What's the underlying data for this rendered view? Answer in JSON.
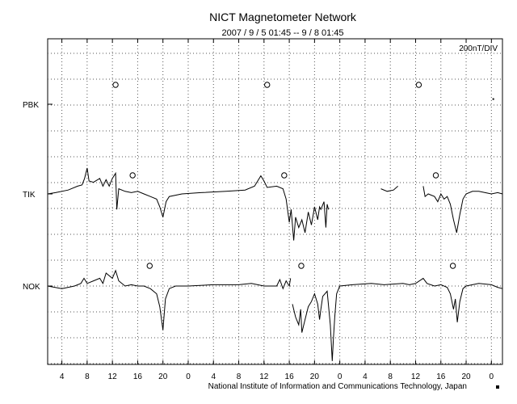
{
  "title": "NICT Magnetometer Network",
  "subtitle": "2007 / 9 / 5  01:45 -- 9 / 8  01:45",
  "scale_label": "200nT/DIV",
  "footer": "National Institute of Information and Communications Technology, Japan",
  "chart_data": {
    "type": "line",
    "title": "NICT Magnetometer Network",
    "time_range": [
      "2007/9/5 01:45",
      "2007/9/8 01:45"
    ],
    "x_unit": "hour (time of day)",
    "xlim": [
      1.75,
      73.75
    ],
    "x_tick_hours": [
      4,
      8,
      12,
      16,
      20,
      24,
      28,
      32,
      36,
      40,
      44,
      48,
      52,
      56,
      60,
      64,
      68,
      72
    ],
    "x_tick_labels": [
      "4",
      "8",
      "12",
      "16",
      "20",
      "0",
      "4",
      "8",
      "12",
      "16",
      "20",
      "0",
      "4",
      "8",
      "12",
      "16",
      "20",
      "0"
    ],
    "y_scale": "200nT/DIV",
    "grid": true,
    "series": [
      {
        "name": "PBK",
        "local_noon_markers_hour": [
          12.5,
          36.5,
          60.5
        ],
        "points": [
          [
            72.3,
            0.2
          ]
        ]
      },
      {
        "name": "TIK",
        "local_noon_markers_hour": [
          15.2,
          39.2,
          63.2
        ],
        "points": [
          [
            1.75,
            0
          ],
          [
            3,
            0.05
          ],
          [
            5,
            0.15
          ],
          [
            6.5,
            0.3
          ],
          [
            7.2,
            0.35
          ],
          [
            7.6,
            0.6
          ],
          [
            8,
            1.0
          ],
          [
            8.3,
            0.5
          ],
          [
            9,
            0.45
          ],
          [
            10,
            0.6
          ],
          [
            10.5,
            0.3
          ],
          [
            11,
            0.55
          ],
          [
            11.5,
            0.3
          ],
          [
            12,
            0.6
          ],
          [
            12.5,
            0.8
          ],
          [
            12.7,
            -0.6
          ],
          [
            13,
            0.2
          ],
          [
            14,
            0.1
          ],
          [
            15,
            0.05
          ],
          [
            16,
            0.1
          ],
          [
            17,
            0.0
          ],
          [
            18,
            -0.1
          ],
          [
            19,
            -0.2
          ],
          [
            19.5,
            -0.5
          ],
          [
            20,
            -0.9
          ],
          [
            20.5,
            -0.3
          ],
          [
            21,
            -0.1
          ],
          [
            23,
            0.0
          ],
          [
            26,
            0.05
          ],
          [
            30,
            0.1
          ],
          [
            33,
            0.15
          ],
          [
            34.5,
            0.3
          ],
          [
            35.5,
            0.7
          ],
          [
            36,
            0.5
          ],
          [
            36.5,
            0.25
          ],
          [
            38,
            0.3
          ],
          [
            39,
            0.2
          ],
          [
            39.5,
            -0.2
          ],
          [
            40,
            -1.1
          ],
          [
            40.3,
            -0.6
          ],
          [
            40.7,
            -1.8
          ],
          [
            41,
            -0.9
          ],
          [
            41.5,
            -1.3
          ],
          [
            42,
            -1.0
          ],
          [
            42.5,
            -1.5
          ],
          [
            43,
            -0.7
          ],
          [
            43.5,
            -1.2
          ],
          [
            44,
            -0.5
          ],
          [
            44.5,
            -1.0
          ],
          [
            44.8,
            -0.5
          ],
          [
            45,
            -0.6
          ],
          [
            45.5,
            -0.3
          ],
          [
            45.8,
            -1.3
          ],
          [
            46,
            -0.4
          ],
          [
            46.2,
            -0.6
          ],
          null,
          [
            54.5,
            0.2
          ],
          [
            55.5,
            0.1
          ],
          [
            56.5,
            0.15
          ],
          [
            57.2,
            0.3
          ],
          null,
          [
            61.2,
            0.3
          ],
          [
            61.5,
            -0.1
          ],
          [
            62,
            0.0
          ],
          [
            63,
            -0.1
          ],
          [
            63.5,
            -0.3
          ],
          [
            64,
            0.0
          ],
          [
            64.5,
            -0.2
          ],
          [
            65,
            -0.1
          ],
          [
            65.5,
            -0.4
          ],
          [
            66,
            -1.0
          ],
          [
            66.5,
            -1.5
          ],
          [
            67,
            -0.8
          ],
          [
            67.5,
            -0.2
          ],
          [
            68,
            0.0
          ],
          [
            69,
            0.1
          ],
          [
            70,
            0.1
          ],
          [
            71,
            0.05
          ],
          [
            72,
            0.0
          ],
          [
            73,
            0.05
          ],
          [
            73.75,
            0.0
          ]
        ]
      },
      {
        "name": "NOK",
        "local_noon_markers_hour": [
          17.9,
          41.9,
          65.9
        ],
        "points": [
          [
            1.75,
            0
          ],
          [
            4,
            -0.1
          ],
          [
            5,
            -0.05
          ],
          [
            6,
            0.0
          ],
          [
            7,
            0.1
          ],
          [
            7.5,
            0.3
          ],
          [
            8,
            0.1
          ],
          [
            9,
            0.2
          ],
          [
            10,
            0.3
          ],
          [
            10.5,
            0.1
          ],
          [
            11,
            0.5
          ],
          [
            12,
            0.3
          ],
          [
            12.5,
            0.6
          ],
          [
            13,
            0.2
          ],
          [
            14,
            0.0
          ],
          [
            15,
            0.05
          ],
          [
            16,
            0.0
          ],
          [
            17,
            0.0
          ],
          [
            18,
            -0.1
          ],
          [
            19,
            -0.3
          ],
          [
            19.5,
            -0.8
          ],
          [
            20,
            -1.7
          ],
          [
            20.4,
            -0.5
          ],
          [
            21,
            -0.1
          ],
          [
            22,
            0.0
          ],
          [
            24,
            0.0
          ],
          [
            28,
            0.05
          ],
          [
            32,
            0.05
          ],
          [
            34,
            0.1
          ],
          [
            36,
            0.0
          ],
          [
            38,
            0.0
          ],
          [
            38.5,
            0.25
          ],
          [
            39,
            -0.1
          ],
          [
            39.5,
            0.2
          ],
          [
            40,
            0.0
          ],
          [
            40.2,
            0.3
          ],
          null,
          [
            40.5,
            -0.7
          ],
          [
            41,
            -1.2
          ],
          [
            41.5,
            -1.5
          ],
          [
            41.8,
            -0.9
          ],
          [
            42,
            -1.8
          ],
          [
            42.5,
            -1.3
          ],
          [
            43,
            -0.8
          ],
          [
            43.5,
            -0.6
          ],
          [
            44,
            -0.3
          ],
          [
            44.5,
            -0.7
          ],
          [
            44.8,
            -1.3
          ],
          [
            45,
            -0.9
          ],
          [
            45.3,
            -0.4
          ],
          [
            46,
            -0.2
          ],
          [
            46.5,
            -1.5
          ],
          [
            46.8,
            -2.9
          ],
          [
            47,
            -2.0
          ],
          [
            47.2,
            -1.2
          ],
          [
            47.5,
            -0.3
          ],
          [
            48,
            0.0
          ],
          [
            50,
            0.05
          ],
          [
            53,
            0.1
          ],
          [
            55,
            0.05
          ],
          [
            58,
            0.1
          ],
          [
            59,
            0.05
          ],
          [
            60,
            0.1
          ],
          [
            61.2,
            0.3
          ],
          [
            61.8,
            0.1
          ],
          [
            63,
            0.0
          ],
          [
            64,
            0.05
          ],
          [
            65,
            -0.05
          ],
          [
            65.5,
            -0.3
          ],
          [
            66,
            -0.9
          ],
          [
            66.3,
            -0.5
          ],
          [
            66.6,
            -1.4
          ],
          [
            67,
            -0.6
          ],
          [
            67.5,
            -0.1
          ],
          [
            68,
            0.0
          ],
          [
            70,
            0.1
          ],
          [
            72,
            0.05
          ],
          [
            73,
            -0.05
          ],
          [
            73.75,
            -0.1
          ]
        ]
      }
    ]
  }
}
